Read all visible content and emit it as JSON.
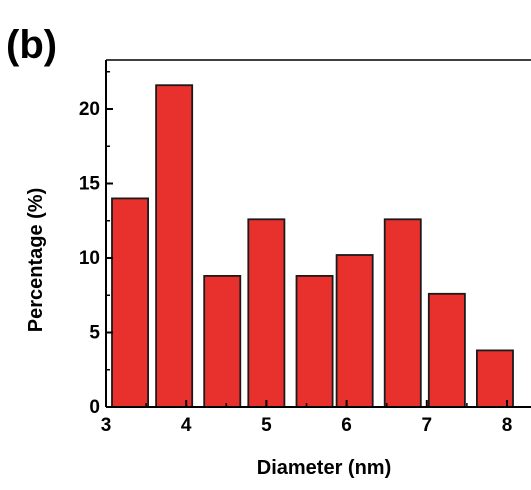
{
  "panel_label": "(b)",
  "colors": {
    "bar_fill": "#e8312d",
    "bar_stroke": "#1a1a1a",
    "axis": "#000000"
  },
  "chart_data": {
    "type": "bar",
    "xlabel": "Diameter (nm)",
    "ylabel": "Percentage (%)",
    "xlim": [
      3,
      8.2
    ],
    "ylim": [
      0,
      23.5
    ],
    "x_ticks": [
      3,
      4,
      5,
      6,
      7,
      8
    ],
    "y_ticks": [
      0,
      5,
      10,
      15,
      20
    ],
    "bin_width": 0.5,
    "bin_centers": [
      3.3,
      3.85,
      4.45,
      5.0,
      5.6,
      6.1,
      6.7,
      7.25,
      7.85
    ],
    "values": [
      14.0,
      21.6,
      8.8,
      12.6,
      8.8,
      10.2,
      12.6,
      7.6,
      3.8
    ],
    "grid": false,
    "legend": "none"
  }
}
